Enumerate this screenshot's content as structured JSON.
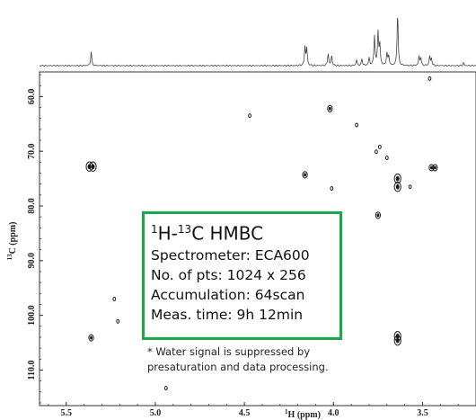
{
  "chart_data": {
    "type": "scatter",
    "subtype": "2D NMR contour plot (HMBC)",
    "xlabel_main": "H (ppm)",
    "xlabel_sup": "1",
    "ylabel_main": "C (ppm)",
    "ylabel_sup": "13",
    "xlim": [
      5.65,
      3.2
    ],
    "ylim": [
      55.5,
      116.5
    ],
    "x_reversed": true,
    "y_reversed": true,
    "x_ticks": [
      5.5,
      5.0,
      4.5,
      4.0,
      3.5
    ],
    "x_tick_labels": [
      "5.5",
      "5.0",
      "4.5",
      "4.0",
      "3.5"
    ],
    "y_ticks": [
      60,
      70,
      80,
      90,
      100,
      110
    ],
    "y_tick_labels": [
      "60.0",
      "70.0",
      "80.0",
      "90.0",
      "100.0",
      "110.0"
    ],
    "grid": false,
    "projection_1d": {
      "peaks": [
        {
          "x": 5.36,
          "height": 0.25
        },
        {
          "x": 4.16,
          "height": 0.34
        },
        {
          "x": 4.15,
          "height": 0.3
        },
        {
          "x": 4.03,
          "height": 0.22
        },
        {
          "x": 4.01,
          "height": 0.18
        },
        {
          "x": 3.87,
          "height": 0.1
        },
        {
          "x": 3.84,
          "height": 0.12
        },
        {
          "x": 3.8,
          "height": 0.14
        },
        {
          "x": 3.77,
          "height": 0.54
        },
        {
          "x": 3.75,
          "height": 0.6
        },
        {
          "x": 3.74,
          "height": 0.38
        },
        {
          "x": 3.7,
          "height": 0.22
        },
        {
          "x": 3.69,
          "height": 0.18
        },
        {
          "x": 3.64,
          "height": 0.95
        },
        {
          "x": 3.52,
          "height": 0.16
        },
        {
          "x": 3.51,
          "height": 0.14
        },
        {
          "x": 3.46,
          "height": 0.17
        },
        {
          "x": 3.45,
          "height": 0.12
        },
        {
          "x": 3.27,
          "height": 0.05
        }
      ]
    },
    "cross_peaks": [
      {
        "x": 5.37,
        "y": 72.8,
        "intensity": "strong"
      },
      {
        "x": 5.35,
        "y": 72.8,
        "intensity": "strong"
      },
      {
        "x": 5.36,
        "y": 104.1,
        "intensity": "medium"
      },
      {
        "x": 5.23,
        "y": 97.0,
        "intensity": "weak"
      },
      {
        "x": 5.21,
        "y": 101.1,
        "intensity": "weak"
      },
      {
        "x": 4.94,
        "y": 113.3,
        "intensity": "weak"
      },
      {
        "x": 4.47,
        "y": 63.5,
        "intensity": "weak"
      },
      {
        "x": 4.16,
        "y": 74.3,
        "intensity": "medium"
      },
      {
        "x": 4.02,
        "y": 62.2,
        "intensity": "medium"
      },
      {
        "x": 4.01,
        "y": 76.8,
        "intensity": "weak"
      },
      {
        "x": 3.87,
        "y": 65.2,
        "intensity": "weak"
      },
      {
        "x": 3.76,
        "y": 70.1,
        "intensity": "weak"
      },
      {
        "x": 3.74,
        "y": 69.2,
        "intensity": "weak"
      },
      {
        "x": 3.75,
        "y": 81.7,
        "intensity": "medium"
      },
      {
        "x": 3.7,
        "y": 71.2,
        "intensity": "weak"
      },
      {
        "x": 3.64,
        "y": 75.0,
        "intensity": "strong"
      },
      {
        "x": 3.64,
        "y": 76.5,
        "intensity": "strong"
      },
      {
        "x": 3.64,
        "y": 103.8,
        "intensity": "strong"
      },
      {
        "x": 3.64,
        "y": 104.6,
        "intensity": "strong"
      },
      {
        "x": 3.57,
        "y": 76.5,
        "intensity": "weak"
      },
      {
        "x": 3.46,
        "y": 56.7,
        "intensity": "weak"
      },
      {
        "x": 3.45,
        "y": 73.0,
        "intensity": "medium"
      },
      {
        "x": 3.43,
        "y": 73.0,
        "intensity": "medium"
      }
    ]
  },
  "info_box": {
    "title_pre": "1",
    "title_mid": "H-",
    "title_sup2": "13",
    "title_post": "C HMBC",
    "spectrometer": "Spectrometer: ECA600",
    "points": "No. of pts: 1024 x 256",
    "accumulation": "Accumulation: 64scan",
    "meas_time": "Meas. time: 9h 12min"
  },
  "footnote": {
    "line1": "* Water signal is suppressed by",
    "line2": "presaturation and data processing."
  },
  "colors": {
    "contour": "#1a1a1a",
    "box_border": "#1aa84a",
    "axis": "#333333"
  }
}
